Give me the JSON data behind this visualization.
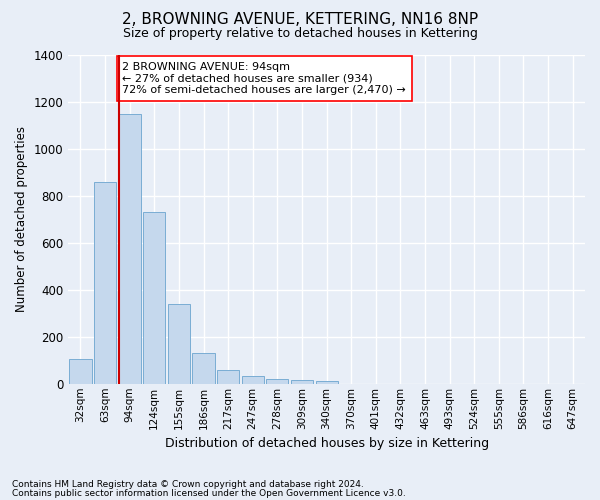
{
  "title": "2, BROWNING AVENUE, KETTERING, NN16 8NP",
  "subtitle": "Size of property relative to detached houses in Kettering",
  "xlabel": "Distribution of detached houses by size in Kettering",
  "ylabel": "Number of detached properties",
  "bin_labels": [
    "32sqm",
    "63sqm",
    "94sqm",
    "124sqm",
    "155sqm",
    "186sqm",
    "217sqm",
    "247sqm",
    "278sqm",
    "309sqm",
    "340sqm",
    "370sqm",
    "401sqm",
    "432sqm",
    "463sqm",
    "493sqm",
    "524sqm",
    "555sqm",
    "586sqm",
    "616sqm",
    "647sqm"
  ],
  "bar_values": [
    105,
    860,
    1150,
    730,
    340,
    130,
    60,
    32,
    22,
    18,
    12,
    0,
    0,
    0,
    0,
    0,
    0,
    0,
    0,
    0,
    0
  ],
  "bar_color": "#c5d8ed",
  "bar_edge_color": "#7aadd4",
  "highlight_index": 2,
  "highlight_color": "#cc0000",
  "ylim": [
    0,
    1400
  ],
  "yticks": [
    0,
    200,
    400,
    600,
    800,
    1000,
    1200,
    1400
  ],
  "annotation_title": "2 BROWNING AVENUE: 94sqm",
  "annotation_line1": "← 27% of detached houses are smaller (934)",
  "annotation_line2": "72% of semi-detached houses are larger (2,470) →",
  "footnote1": "Contains HM Land Registry data © Crown copyright and database right 2024.",
  "footnote2": "Contains public sector information licensed under the Open Government Licence v3.0.",
  "background_color": "#e8eef7",
  "grid_color": "#ffffff"
}
